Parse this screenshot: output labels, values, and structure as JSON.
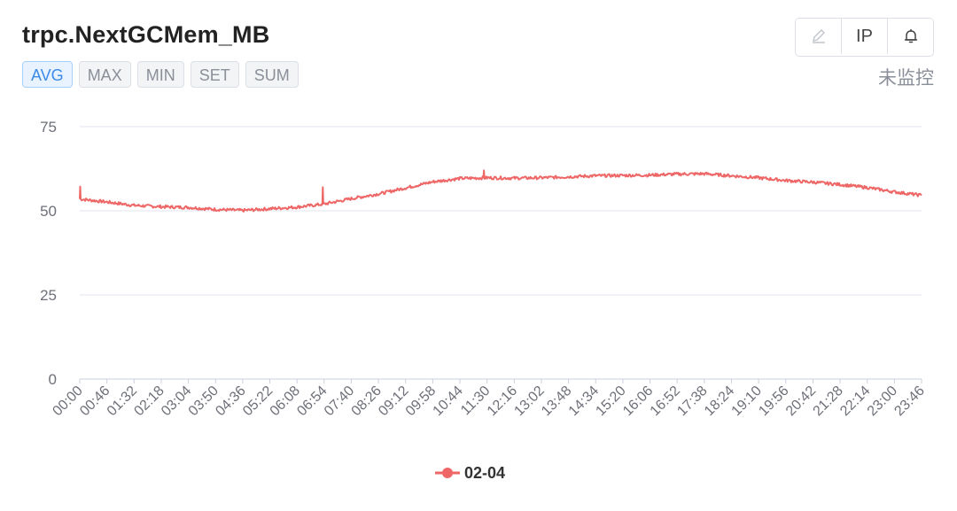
{
  "header": {
    "title": "trpc.NextGCMem_MB",
    "tabs": [
      {
        "label": "AVG",
        "active": true
      },
      {
        "label": "MAX",
        "active": false
      },
      {
        "label": "MIN",
        "active": false
      },
      {
        "label": "SET",
        "active": false
      },
      {
        "label": "SUM",
        "active": false
      }
    ],
    "toolbar": {
      "edit_icon": "pencil-icon",
      "ip_label": "IP",
      "alarm_icon": "bell-icon"
    },
    "status": "未监控"
  },
  "colors": {
    "series": "#ee6666",
    "active_tab": "#3c8be8",
    "grid": "#e0e6f1"
  },
  "chart_data": {
    "type": "line",
    "title": "trpc.NextGCMem_MB",
    "xlabel": "",
    "ylabel": "",
    "ylim": [
      0,
      75
    ],
    "yticks": [
      0,
      25,
      50,
      75
    ],
    "categories": [
      "00:00",
      "00:46",
      "01:32",
      "02:18",
      "03:04",
      "03:50",
      "04:36",
      "05:22",
      "06:08",
      "06:54",
      "07:40",
      "08:26",
      "09:12",
      "09:58",
      "10:44",
      "11:30",
      "12:16",
      "13:02",
      "13:48",
      "14:34",
      "15:20",
      "16:06",
      "16:52",
      "17:38",
      "18:24",
      "19:10",
      "19:56",
      "20:42",
      "21:28",
      "22:14",
      "23:00",
      "23:46"
    ],
    "grid": true,
    "legend_position": "bottom-center",
    "series": [
      {
        "name": "02-04",
        "values": [
          53.5,
          52.6,
          51.6,
          51.2,
          51.0,
          50.4,
          50.1,
          50.6,
          51.1,
          52.0,
          53.6,
          55.0,
          56.8,
          58.6,
          59.6,
          59.8,
          59.7,
          59.8,
          60.1,
          60.4,
          60.5,
          60.6,
          60.9,
          61.0,
          60.4,
          59.8,
          59.0,
          58.5,
          57.8,
          56.9,
          55.6,
          54.6
        ],
        "spikes": [
          {
            "at": "00:00",
            "value": 57.2
          },
          {
            "at": "06:54",
            "value": 57.0
          },
          {
            "at": "11:30",
            "value": 62.0
          }
        ]
      }
    ]
  }
}
